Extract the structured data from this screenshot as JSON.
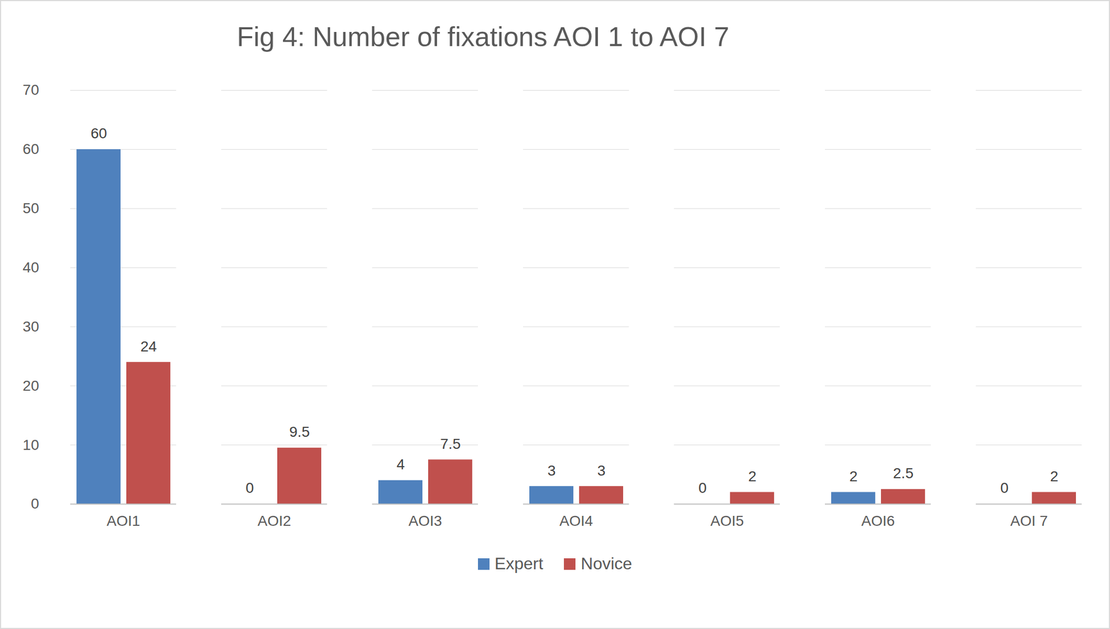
{
  "chart_data": {
    "type": "bar",
    "title": "Fig 4: Number of fixations AOI 1 to AOI 7",
    "categories": [
      "AOI1",
      "AOI2",
      "AOI3",
      "AOI4",
      "AOI5",
      "AOI6",
      "AOI 7"
    ],
    "series": [
      {
        "name": "Expert",
        "color": "#4f81bd",
        "values": [
          60,
          0,
          4,
          3,
          0,
          2,
          0
        ]
      },
      {
        "name": "Novice",
        "color": "#c0504d",
        "values": [
          24,
          9.5,
          7.5,
          3,
          2,
          2.5,
          2
        ]
      }
    ],
    "ylim": [
      0,
      70
    ],
    "yticks": [
      0,
      10,
      20,
      30,
      40,
      50,
      60,
      70
    ],
    "grid": true,
    "data_labels": true,
    "legend": "bottom"
  }
}
